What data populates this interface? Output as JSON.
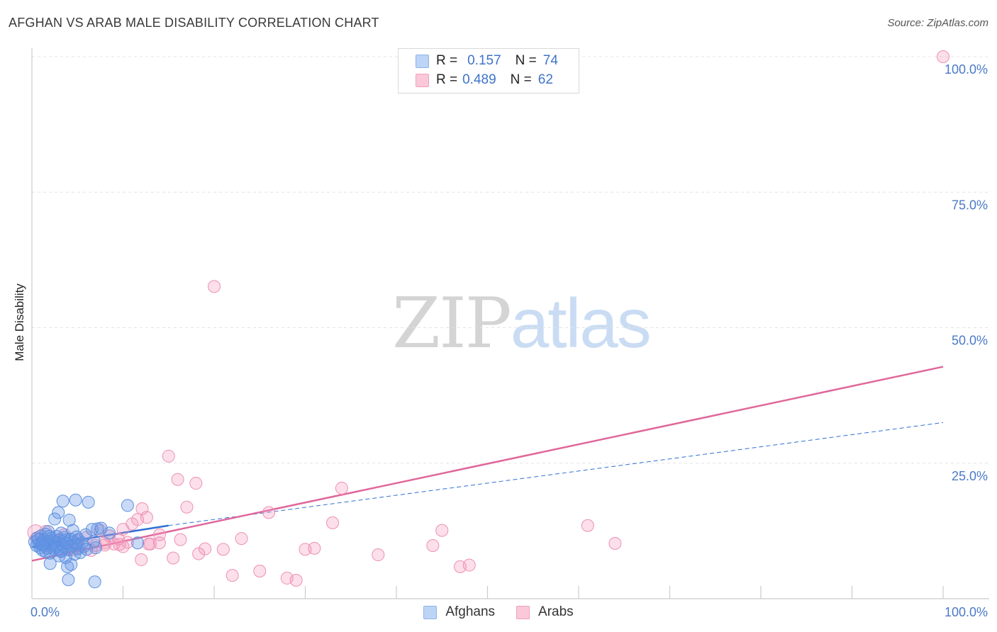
{
  "title": "AFGHAN VS ARAB MALE DISABILITY CORRELATION CHART",
  "source": "Source: ZipAtlas.com",
  "watermark": {
    "zip": "ZIP",
    "atlas": "atlas"
  },
  "legend_top": [
    {
      "r_label": "R =",
      "r_value": "0.157",
      "n_label": "N =",
      "n_value": "74"
    },
    {
      "r_label": "R =",
      "r_value": "0.489",
      "n_label": "N =",
      "n_value": "62"
    }
  ],
  "legend_bottom": [
    "Afghans",
    "Arabs"
  ],
  "colors": {
    "afghans_fill": "rgba(100,150,230,0.35)",
    "afghans_stroke": "#5b8fe0",
    "afghans_line": "#2f6fd6",
    "arabs_fill": "rgba(245,150,185,0.30)",
    "arabs_stroke": "#ec91b2",
    "arabs_line": "#e0679a",
    "legend_blue_bg": "#bcd4f6",
    "legend_pink_bg": "#fbc8d9",
    "grid": "#e4e4e4",
    "axis": "#cccccc",
    "tick_text": "#4a7ac7"
  },
  "chart_data": {
    "type": "scatter",
    "title": "AFGHAN VS ARAB MALE DISABILITY CORRELATION CHART",
    "xlabel": "",
    "ylabel": "Male Disability",
    "xlim": [
      0,
      100
    ],
    "ylim": [
      0,
      100
    ],
    "x_tick_labels": [
      "0.0%",
      "100.0%"
    ],
    "y_tick_labels": [
      "100.0%",
      "75.0%",
      "50.0%",
      "25.0%"
    ],
    "y_ticks": [
      100,
      75,
      50,
      25
    ],
    "legend": [
      "Afghans",
      "Arabs"
    ],
    "series": [
      {
        "name": "Afghans",
        "r": 0.157,
        "n": 74,
        "trend": {
          "x0": 0,
          "y0": 9.5,
          "x1": 15,
          "y1": 13.5,
          "x_end": 100,
          "y_end": 32.5
        },
        "points": [
          [
            0.3,
            10.5
          ],
          [
            0.5,
            9.8
          ],
          [
            0.6,
            11.2
          ],
          [
            0.8,
            10.1
          ],
          [
            0.9,
            9.4
          ],
          [
            1.0,
            11.6
          ],
          [
            1.1,
            10.3
          ],
          [
            1.2,
            8.9
          ],
          [
            1.3,
            10.8
          ],
          [
            1.4,
            9.7
          ],
          [
            1.5,
            11.9
          ],
          [
            1.6,
            10.2
          ],
          [
            1.7,
            9.3
          ],
          [
            1.8,
            12.4
          ],
          [
            1.9,
            10.6
          ],
          [
            2.0,
            8.4
          ],
          [
            2.1,
            11.1
          ],
          [
            2.2,
            9.9
          ],
          [
            2.3,
            10.7
          ],
          [
            2.4,
            9.1
          ],
          [
            2.5,
            14.7
          ],
          [
            2.6,
            10.4
          ],
          [
            2.7,
            11.5
          ],
          [
            2.8,
            9.6
          ],
          [
            2.9,
            15.9
          ],
          [
            3.0,
            10.9
          ],
          [
            3.1,
            8.8
          ],
          [
            3.2,
            12.1
          ],
          [
            3.3,
            10.0
          ],
          [
            3.4,
            18.0
          ],
          [
            3.5,
            9.5
          ],
          [
            3.6,
            11.3
          ],
          [
            3.7,
            7.6
          ],
          [
            3.8,
            10.2
          ],
          [
            3.9,
            5.9
          ],
          [
            4.0,
            9.0
          ],
          [
            4.1,
            14.5
          ],
          [
            4.2,
            11.0
          ],
          [
            4.3,
            6.3
          ],
          [
            4.4,
            9.8
          ],
          [
            4.5,
            12.6
          ],
          [
            4.6,
            10.5
          ],
          [
            4.7,
            8.2
          ],
          [
            4.8,
            18.2
          ],
          [
            4.9,
            11.4
          ],
          [
            5.0,
            9.2
          ],
          [
            5.1,
            10.9
          ],
          [
            5.3,
            8.5
          ],
          [
            5.5,
            10.3
          ],
          [
            5.7,
            9.6
          ],
          [
            4.0,
            3.5
          ],
          [
            2.0,
            6.5
          ],
          [
            3.0,
            7.9
          ],
          [
            1.5,
            8.7
          ],
          [
            6.2,
            17.8
          ],
          [
            6.6,
            12.8
          ],
          [
            7.2,
            12.9
          ],
          [
            7.6,
            13.0
          ],
          [
            8.5,
            12.1
          ],
          [
            10.5,
            17.2
          ],
          [
            11.6,
            10.3
          ],
          [
            6.8,
            10.6
          ],
          [
            5.9,
            11.8
          ],
          [
            1.2,
            10.0
          ],
          [
            2.6,
            9.4
          ],
          [
            3.6,
            10.8
          ],
          [
            4.8,
            10.1
          ],
          [
            6.0,
            9.1
          ],
          [
            0.7,
            10.9
          ],
          [
            1.9,
            11.5
          ],
          [
            3.2,
            8.7
          ],
          [
            7.0,
            9.4
          ],
          [
            3.8,
            10.3
          ],
          [
            6.9,
            3.1
          ]
        ]
      },
      {
        "name": "Arabs",
        "r": 0.489,
        "n": 62,
        "trend": {
          "x0": 0,
          "y0": 7.0,
          "x1": 100,
          "y1": 42.8
        },
        "points": [
          [
            0.5,
            11.2
          ],
          [
            1.2,
            10.3
          ],
          [
            2.0,
            9.6
          ],
          [
            3.0,
            10.9
          ],
          [
            4.0,
            9.2
          ],
          [
            5.0,
            10.6
          ],
          [
            6.0,
            11.3
          ],
          [
            7.0,
            9.8
          ],
          [
            7.5,
            12.6
          ],
          [
            8.0,
            10.3
          ],
          [
            8.5,
            11.6
          ],
          [
            9.0,
            10.1
          ],
          [
            9.5,
            11.0
          ],
          [
            10.0,
            12.8
          ],
          [
            10.5,
            10.4
          ],
          [
            11.0,
            13.8
          ],
          [
            11.6,
            14.6
          ],
          [
            12.1,
            16.6
          ],
          [
            12.6,
            15.0
          ],
          [
            13.0,
            10.1
          ],
          [
            14.0,
            11.8
          ],
          [
            15.0,
            26.3
          ],
          [
            16.0,
            22.0
          ],
          [
            17.0,
            16.9
          ],
          [
            18.0,
            21.3
          ],
          [
            19.0,
            9.2
          ],
          [
            20.0,
            57.6
          ],
          [
            21.0,
            9.1
          ],
          [
            22.0,
            4.3
          ],
          [
            23.0,
            11.1
          ],
          [
            25.0,
            5.1
          ],
          [
            26.0,
            15.9
          ],
          [
            28.0,
            3.8
          ],
          [
            29.0,
            3.4
          ],
          [
            30.0,
            9.1
          ],
          [
            31.0,
            9.3
          ],
          [
            33.0,
            14.0
          ],
          [
            34.0,
            20.4
          ],
          [
            38.0,
            8.1
          ],
          [
            44.0,
            9.8
          ],
          [
            45.0,
            12.6
          ],
          [
            47.0,
            5.9
          ],
          [
            48.0,
            6.2
          ],
          [
            61.0,
            13.5
          ],
          [
            64.0,
            10.2
          ],
          [
            100.0,
            100.0
          ],
          [
            1.5,
            12.4
          ],
          [
            2.5,
            10.7
          ],
          [
            4.5,
            9.0
          ],
          [
            6.5,
            8.9
          ],
          [
            8.0,
            9.9
          ],
          [
            10.0,
            9.6
          ],
          [
            12.0,
            7.2
          ],
          [
            14.0,
            10.3
          ],
          [
            15.5,
            7.5
          ],
          [
            16.3,
            10.9
          ],
          [
            18.3,
            8.3
          ],
          [
            12.8,
            10.1
          ],
          [
            9.6,
            10.0
          ],
          [
            3.6,
            11.8
          ],
          [
            5.2,
            9.4
          ],
          [
            0.4,
            12.2
          ]
        ]
      }
    ]
  }
}
